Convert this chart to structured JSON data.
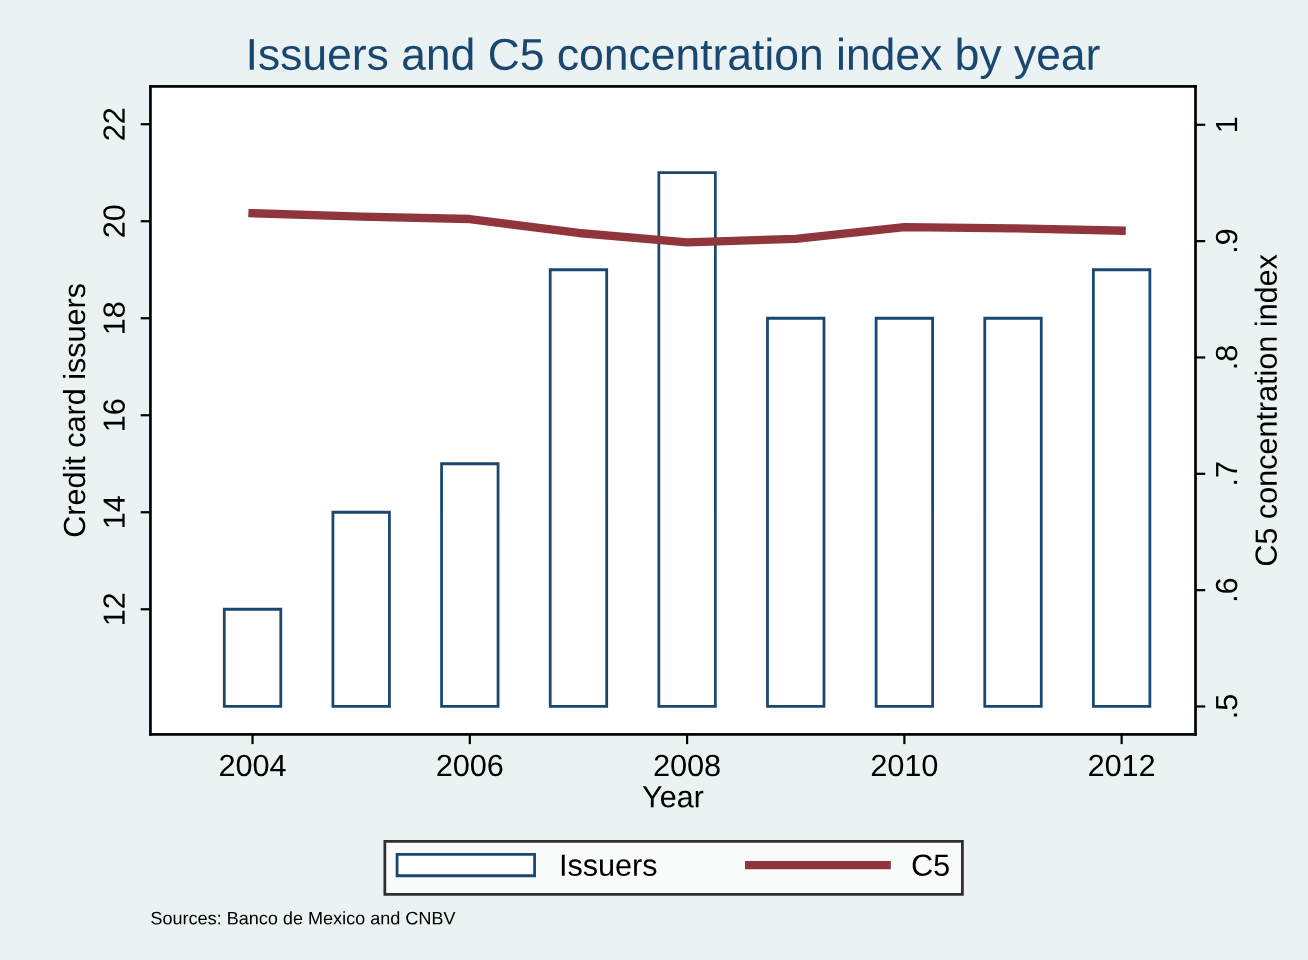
{
  "chart_data": {
    "type": "bar",
    "title": "Issuers and C5 concentration index by year",
    "xlabel": "Year",
    "ylabel": "Credit card issuers",
    "y2label": "C5 concentration index",
    "x": [
      2004,
      2005,
      2006,
      2007,
      2008,
      2009,
      2010,
      2011,
      2012
    ],
    "series": [
      {
        "name": "Issuers",
        "color": "#1a476f",
        "base": [
          10,
          10,
          10,
          10,
          10,
          10,
          10,
          10,
          10
        ],
        "values": [
          2,
          4,
          5,
          9,
          11,
          8,
          8,
          8,
          9
        ]
      },
      {
        "name": "C5",
        "type": "line",
        "axis": "y2",
        "color": "#90353b",
        "values": [
          0.924,
          0.921,
          0.919,
          0.907,
          0.899,
          0.902,
          0.912,
          0.911,
          0.909
        ]
      }
    ],
    "xlim": [
      2003.06,
      2012.68
    ],
    "xticks": [
      2004,
      2006,
      2008,
      2010,
      2012
    ],
    "ylim": [
      9.42,
      22.78
    ],
    "yticks": [
      12,
      14,
      16,
      18,
      20,
      22
    ],
    "y2lim": [
      0.476,
      1.033
    ],
    "y2ticks": [
      {
        "value": 0.5,
        "label": ".5"
      },
      {
        "value": 0.6,
        "label": ".6"
      },
      {
        "value": 0.7,
        "label": ".7"
      },
      {
        "value": 0.8,
        "label": ".8"
      },
      {
        "value": 0.9,
        "label": ".9"
      },
      {
        "value": 1,
        "label": "1"
      }
    ],
    "legend": "bottom",
    "grid": false,
    "annotations": [
      "Sources: Banco de Mexico and CNBV"
    ]
  }
}
